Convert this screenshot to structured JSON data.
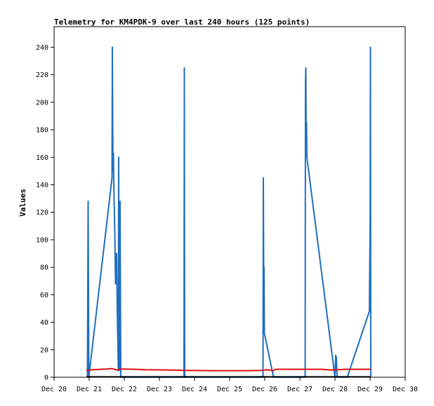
{
  "chart_data": {
    "type": "line",
    "title": "Telemetry for KM4PDK-9 over last 240 hours (125 points)",
    "ylabel": "Values",
    "xlabel": "",
    "x_ticks": [
      "Dec 20",
      "Dec 21",
      "Dec 22",
      "Dec 23",
      "Dec 24",
      "Dec 25",
      "Dec 26",
      "Dec 27",
      "Dec 28",
      "Dec 29",
      "Dec 30"
    ],
    "x_range_days": [
      20,
      30
    ],
    "y_ticks": [
      0,
      20,
      40,
      60,
      80,
      100,
      120,
      140,
      160,
      180,
      200,
      220,
      240
    ],
    "ylim": [
      0,
      255
    ],
    "grid": false,
    "series": [
      {
        "color": "#1f6fbf",
        "points": [
          [
            20.95,
            0
          ],
          [
            20.97,
            128
          ],
          [
            20.98,
            65
          ],
          [
            20.99,
            0
          ],
          [
            21.65,
            145
          ],
          [
            21.66,
            240
          ],
          [
            21.67,
            183
          ],
          [
            21.68,
            150
          ],
          [
            21.69,
            163
          ],
          [
            21.7,
            140
          ],
          [
            21.73,
            105
          ],
          [
            21.75,
            68
          ],
          [
            21.78,
            90
          ],
          [
            21.8,
            48
          ],
          [
            21.83,
            5
          ],
          [
            21.84,
            160
          ],
          [
            21.85,
            30
          ],
          [
            21.86,
            5
          ],
          [
            21.88,
            128
          ],
          [
            21.9,
            0
          ],
          [
            23.7,
            0
          ],
          [
            23.71,
            225
          ],
          [
            23.72,
            0
          ],
          [
            25.95,
            0
          ],
          [
            25.96,
            145
          ],
          [
            25.97,
            72
          ],
          [
            25.98,
            80
          ],
          [
            25.99,
            32
          ],
          [
            26.25,
            0
          ],
          [
            27.15,
            0
          ],
          [
            27.16,
            215
          ],
          [
            27.17,
            225
          ],
          [
            27.18,
            168
          ],
          [
            27.19,
            185
          ],
          [
            27.2,
            160
          ],
          [
            28.0,
            0
          ],
          [
            28.02,
            16
          ],
          [
            28.04,
            14
          ],
          [
            28.06,
            0
          ],
          [
            28.35,
            0
          ],
          [
            28.98,
            48
          ],
          [
            28.99,
            80
          ],
          [
            29.0,
            105
          ],
          [
            29.01,
            240
          ],
          [
            29.02,
            0
          ]
        ]
      },
      {
        "color": "#dd1111",
        "points": [
          [
            20.92,
            5
          ],
          [
            21.1,
            5.5
          ],
          [
            21.5,
            6
          ],
          [
            21.65,
            6.3
          ],
          [
            21.8,
            5.2
          ],
          [
            21.9,
            6
          ],
          [
            22.3,
            5.8
          ],
          [
            22.6,
            5.5
          ],
          [
            23.2,
            5.3
          ],
          [
            23.7,
            5
          ],
          [
            24.5,
            4.8
          ],
          [
            25.5,
            4.8
          ],
          [
            25.95,
            5
          ],
          [
            26.05,
            5.5
          ],
          [
            26.25,
            4.8
          ],
          [
            26.3,
            5.8
          ],
          [
            27.0,
            5.8
          ],
          [
            27.6,
            5.8
          ],
          [
            27.9,
            5.2
          ],
          [
            28.3,
            5.8
          ],
          [
            29.02,
            5.8
          ]
        ]
      },
      {
        "color": "#000000",
        "points": [
          [
            20.92,
            0.3
          ],
          [
            29.02,
            0.3
          ]
        ]
      }
    ]
  }
}
